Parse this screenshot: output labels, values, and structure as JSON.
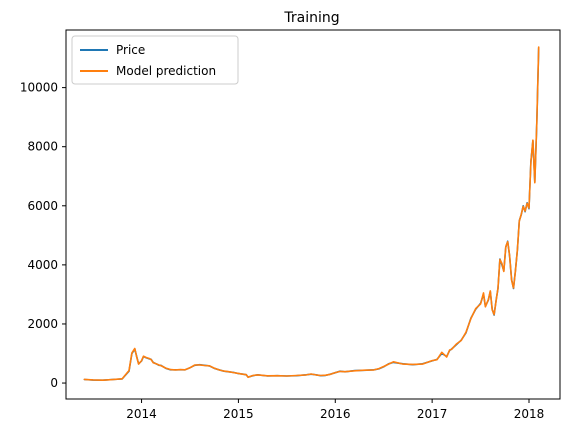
{
  "chart_data": {
    "type": "line",
    "title": "Training",
    "xlabel": "",
    "ylabel": "",
    "x_ticks": [
      "2014",
      "2015",
      "2016",
      "2017",
      "2018"
    ],
    "y_ticks": [
      "0",
      "2000",
      "4000",
      "6000",
      "8000",
      "10000"
    ],
    "xlim": [
      2013.22,
      2018.32
    ],
    "ylim": [
      -540,
      11950
    ],
    "grid": false,
    "legend_position": "upper left",
    "series": [
      {
        "name": "Price",
        "color": "#1f77b4",
        "x": [
          2013.41,
          2013.5,
          2013.6,
          2013.7,
          2013.8,
          2013.87,
          2013.9,
          2013.93,
          2013.95,
          2013.97,
          2014.0,
          2014.02,
          2014.05,
          2014.08,
          2014.1,
          2014.12,
          2014.15,
          2014.18,
          2014.2,
          2014.25,
          2014.3,
          2014.35,
          2014.4,
          2014.45,
          2014.5,
          2014.55,
          2014.6,
          2014.65,
          2014.7,
          2014.75,
          2014.8,
          2014.85,
          2014.9,
          2014.95,
          2015.0,
          2015.05,
          2015.08,
          2015.1,
          2015.15,
          2015.2,
          2015.3,
          2015.4,
          2015.5,
          2015.6,
          2015.7,
          2015.75,
          2015.8,
          2015.85,
          2015.9,
          2015.95,
          2016.0,
          2016.05,
          2016.1,
          2016.2,
          2016.3,
          2016.4,
          2016.45,
          2016.5,
          2016.55,
          2016.6,
          2016.7,
          2016.8,
          2016.9,
          2017.0,
          2017.05,
          2017.1,
          2017.15,
          2017.18,
          2017.2,
          2017.25,
          2017.3,
          2017.35,
          2017.4,
          2017.45,
          2017.5,
          2017.53,
          2017.55,
          2017.58,
          2017.6,
          2017.62,
          2017.64,
          2017.66,
          2017.68,
          2017.7,
          2017.72,
          2017.74,
          2017.76,
          2017.78,
          2017.8,
          2017.82,
          2017.84,
          2017.86,
          2017.88,
          2017.9,
          2017.92,
          2017.94,
          2017.96,
          2017.98,
          2018.0,
          2018.02,
          2018.04,
          2018.06,
          2018.08,
          2018.1
        ],
        "y": [
          120,
          100,
          95,
          120,
          140,
          400,
          1000,
          1150,
          900,
          650,
          750,
          900,
          850,
          820,
          800,
          700,
          650,
          600,
          600,
          500,
          450,
          450,
          450,
          450,
          520,
          600,
          620,
          600,
          580,
          500,
          450,
          400,
          380,
          360,
          320,
          300,
          280,
          200,
          250,
          280,
          240,
          250,
          240,
          250,
          280,
          300,
          280,
          250,
          260,
          300,
          350,
          400,
          380,
          420,
          430,
          450,
          480,
          550,
          650,
          700,
          650,
          620,
          650,
          750,
          800,
          1000,
          900,
          1100,
          1150,
          1300,
          1450,
          1700,
          2200,
          2500,
          2700,
          3000,
          2600,
          2800,
          3100,
          2500,
          2300,
          2800,
          3200,
          4200,
          4000,
          3800,
          4600,
          4800,
          4300,
          3500,
          3200,
          3800,
          4500,
          5500,
          5700,
          6000,
          5800,
          6100,
          5900,
          7500,
          8200,
          6800,
          8800,
          11350
        ]
      },
      {
        "name": "Model prediction",
        "color": "#ff7f0e",
        "x": [
          2013.41,
          2013.5,
          2013.6,
          2013.7,
          2013.8,
          2013.87,
          2013.9,
          2013.93,
          2013.95,
          2013.97,
          2014.0,
          2014.02,
          2014.05,
          2014.08,
          2014.1,
          2014.12,
          2014.15,
          2014.18,
          2014.2,
          2014.25,
          2014.3,
          2014.35,
          2014.4,
          2014.45,
          2014.5,
          2014.55,
          2014.6,
          2014.65,
          2014.7,
          2014.75,
          2014.8,
          2014.85,
          2014.9,
          2014.95,
          2015.0,
          2015.05,
          2015.08,
          2015.1,
          2015.15,
          2015.2,
          2015.3,
          2015.4,
          2015.5,
          2015.6,
          2015.7,
          2015.75,
          2015.8,
          2015.85,
          2015.9,
          2015.95,
          2016.0,
          2016.05,
          2016.1,
          2016.2,
          2016.3,
          2016.4,
          2016.45,
          2016.5,
          2016.55,
          2016.6,
          2016.7,
          2016.8,
          2016.9,
          2017.0,
          2017.05,
          2017.1,
          2017.15,
          2017.18,
          2017.2,
          2017.25,
          2017.3,
          2017.35,
          2017.4,
          2017.45,
          2017.5,
          2017.53,
          2017.55,
          2017.58,
          2017.6,
          2017.62,
          2017.64,
          2017.66,
          2017.68,
          2017.7,
          2017.72,
          2017.74,
          2017.76,
          2017.78,
          2017.8,
          2017.82,
          2017.84,
          2017.86,
          2017.88,
          2017.9,
          2017.92,
          2017.94,
          2017.96,
          2017.98,
          2018.0,
          2018.02,
          2018.04,
          2018.06,
          2018.08,
          2018.1
        ],
        "y": [
          125,
          105,
          95,
          118,
          145,
          420,
          1020,
          1170,
          880,
          640,
          760,
          910,
          860,
          830,
          790,
          690,
          655,
          610,
          590,
          505,
          455,
          445,
          455,
          450,
          515,
          610,
          615,
          595,
          585,
          505,
          445,
          405,
          385,
          355,
          325,
          295,
          285,
          195,
          255,
          275,
          245,
          248,
          238,
          255,
          275,
          305,
          275,
          255,
          265,
          295,
          355,
          395,
          385,
          415,
          435,
          445,
          490,
          560,
          640,
          720,
          640,
          630,
          640,
          760,
          790,
          1040,
          880,
          1120,
          1140,
          1320,
          1440,
          1720,
          2180,
          2520,
          2680,
          3050,
          2580,
          2820,
          3120,
          2480,
          2320,
          2780,
          3220,
          4180,
          4050,
          3780,
          4620,
          4780,
          4320,
          3480,
          3220,
          3780,
          4520,
          5480,
          5720,
          5980,
          5820,
          6080,
          5920,
          7480,
          8220,
          6780,
          8820,
          11370
        ]
      }
    ]
  }
}
